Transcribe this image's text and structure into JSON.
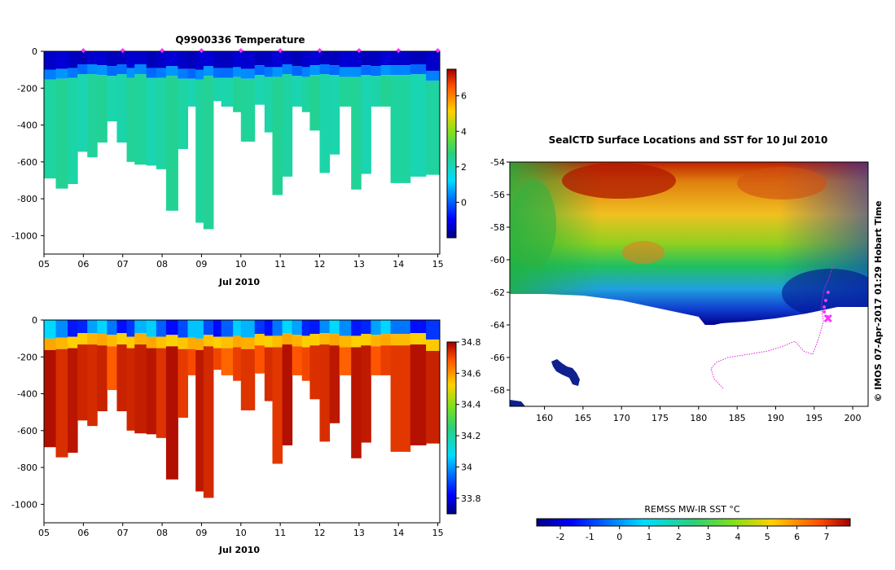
{
  "chart_data": [
    {
      "id": "temperature",
      "type": "heatmap",
      "title": "Q9900336  Temperature",
      "xlabel": "Jul 2010",
      "ylabel": "",
      "xlim": [
        5,
        15.05
      ],
      "ylim": [
        -1100,
        0
      ],
      "x_ticks": [
        "05",
        "06",
        "07",
        "08",
        "09",
        "10",
        "11",
        "12",
        "13",
        "14",
        "15"
      ],
      "y_ticks": [
        0,
        -200,
        -400,
        -600,
        -800,
        -1000
      ],
      "colorbar": {
        "min": -2,
        "max": 7.5,
        "ticks": [
          0,
          2,
          4,
          6
        ]
      },
      "surface_markers_day": [
        6,
        7,
        8,
        9,
        10,
        11,
        12,
        13,
        14,
        15
      ],
      "surface_value": -1.4,
      "thermocline_value": 0.3,
      "deep_value": 2.3,
      "profiles": [
        {
          "day": 5.0,
          "max_depth": 690,
          "mix_depth": 145
        },
        {
          "day": 5.3,
          "max_depth": 745,
          "mix_depth": 140
        },
        {
          "day": 5.6,
          "max_depth": 720,
          "mix_depth": 135
        },
        {
          "day": 5.85,
          "max_depth": 545,
          "mix_depth": 115
        },
        {
          "day": 6.1,
          "max_depth": 575,
          "mix_depth": 115
        },
        {
          "day": 6.35,
          "max_depth": 495,
          "mix_depth": 120
        },
        {
          "day": 6.6,
          "max_depth": 380,
          "mix_depth": 125
        },
        {
          "day": 6.85,
          "max_depth": 495,
          "mix_depth": 115
        },
        {
          "day": 7.1,
          "max_depth": 600,
          "mix_depth": 135
        },
        {
          "day": 7.3,
          "max_depth": 615,
          "mix_depth": 115
        },
        {
          "day": 7.6,
          "max_depth": 620,
          "mix_depth": 135
        },
        {
          "day": 7.85,
          "max_depth": 640,
          "mix_depth": 135
        },
        {
          "day": 8.1,
          "max_depth": 865,
          "mix_depth": 125
        },
        {
          "day": 8.4,
          "max_depth": 530,
          "mix_depth": 140
        },
        {
          "day": 8.65,
          "max_depth": 300,
          "mix_depth": 140
        },
        {
          "day": 8.85,
          "max_depth": 930,
          "mix_depth": 145
        },
        {
          "day": 9.05,
          "max_depth": 965,
          "mix_depth": 125
        },
        {
          "day": 9.3,
          "max_depth": 270,
          "mix_depth": 135
        },
        {
          "day": 9.5,
          "max_depth": 300,
          "mix_depth": 135
        },
        {
          "day": 9.8,
          "max_depth": 330,
          "mix_depth": 130
        },
        {
          "day": 10.0,
          "max_depth": 490,
          "mix_depth": 140
        },
        {
          "day": 10.35,
          "max_depth": 290,
          "mix_depth": 120
        },
        {
          "day": 10.6,
          "max_depth": 440,
          "mix_depth": 130
        },
        {
          "day": 10.8,
          "max_depth": 780,
          "mix_depth": 130
        },
        {
          "day": 11.05,
          "max_depth": 680,
          "mix_depth": 115
        },
        {
          "day": 11.3,
          "max_depth": 300,
          "mix_depth": 125
        },
        {
          "day": 11.55,
          "max_depth": 330,
          "mix_depth": 130
        },
        {
          "day": 11.75,
          "max_depth": 430,
          "mix_depth": 120
        },
        {
          "day": 12.0,
          "max_depth": 660,
          "mix_depth": 115
        },
        {
          "day": 12.25,
          "max_depth": 560,
          "mix_depth": 120
        },
        {
          "day": 12.5,
          "max_depth": 300,
          "mix_depth": 130
        },
        {
          "day": 12.8,
          "max_depth": 750,
          "mix_depth": 130
        },
        {
          "day": 13.05,
          "max_depth": 665,
          "mix_depth": 120
        },
        {
          "day": 13.3,
          "max_depth": 300,
          "mix_depth": 125
        },
        {
          "day": 13.55,
          "max_depth": 300,
          "mix_depth": 120
        },
        {
          "day": 13.8,
          "max_depth": 715,
          "mix_depth": 120
        },
        {
          "day": 14.3,
          "max_depth": 680,
          "mix_depth": 115
        },
        {
          "day": 14.7,
          "max_depth": 670,
          "mix_depth": 150
        },
        {
          "day": 15.05,
          "max_depth": 670,
          "mix_depth": 150
        }
      ]
    },
    {
      "id": "salinity",
      "type": "heatmap",
      "title": "",
      "xlabel": "Jul 2010",
      "ylabel": "",
      "xlim": [
        5,
        15.05
      ],
      "ylim": [
        -1100,
        0
      ],
      "x_ticks": [
        "05",
        "06",
        "07",
        "08",
        "09",
        "10",
        "11",
        "12",
        "13",
        "14",
        "15"
      ],
      "y_ticks": [
        0,
        -200,
        -400,
        -600,
        -800,
        -1000
      ],
      "colorbar": {
        "min": 33.7,
        "max": 34.8,
        "ticks": [
          33.8,
          34.0,
          34.2,
          34.4,
          34.6,
          34.8
        ]
      },
      "surface_value": 33.95,
      "deep_value": 34.74
    },
    {
      "id": "sst-map",
      "type": "heatmap",
      "title": "SealCTD Surface Locations and SST for 10 Jul 2010",
      "xlabel": "",
      "ylabel": "",
      "xlim": [
        155.5,
        202
      ],
      "ylim": [
        -69,
        -54
      ],
      "x_ticks": [
        160,
        165,
        170,
        175,
        180,
        185,
        190,
        195,
        200
      ],
      "y_ticks": [
        -54,
        -56,
        -58,
        -60,
        -62,
        -64,
        -66,
        -68
      ],
      "colorbar_label": "REMSS MW-IR SST °C",
      "colorbar": {
        "min": -2.8,
        "max": 7.8,
        "ticks": [
          -2,
          -1,
          0,
          1,
          2,
          3,
          4,
          5,
          6,
          7
        ]
      },
      "side_note": "© IMOS 07-Apr-2017 01:29 Hobart Time",
      "ice_edge": [
        {
          "lon": 155.5,
          "lat": -62.1
        },
        {
          "lon": 160,
          "lat": -62.1
        },
        {
          "lon": 165,
          "lat": -62.2
        },
        {
          "lon": 170,
          "lat": -62.5
        },
        {
          "lon": 175,
          "lat": -63.0
        },
        {
          "lon": 178,
          "lat": -63.3
        },
        {
          "lon": 180,
          "lat": -63.5
        },
        {
          "lon": 181,
          "lat": -64.1
        },
        {
          "lon": 183,
          "lat": -63.9
        },
        {
          "lon": 186,
          "lat": -63.8
        },
        {
          "lon": 190,
          "lat": -63.6
        },
        {
          "lon": 194,
          "lat": -63.3
        },
        {
          "lon": 198,
          "lat": -62.9
        },
        {
          "lon": 202,
          "lat": -62.9
        }
      ],
      "track": [
        {
          "lon": 183.2,
          "lat": -67.9
        },
        {
          "lon": 182.0,
          "lat": -67.3
        },
        {
          "lon": 181.6,
          "lat": -66.7
        },
        {
          "lon": 182.3,
          "lat": -66.3
        },
        {
          "lon": 183.8,
          "lat": -66.0
        },
        {
          "lon": 186.5,
          "lat": -65.8
        },
        {
          "lon": 189.0,
          "lat": -65.6
        },
        {
          "lon": 191.0,
          "lat": -65.3
        },
        {
          "lon": 192.5,
          "lat": -65.0
        },
        {
          "lon": 193.6,
          "lat": -65.6
        },
        {
          "lon": 194.8,
          "lat": -65.8
        },
        {
          "lon": 195.6,
          "lat": -64.8
        },
        {
          "lon": 196.2,
          "lat": -63.8
        },
        {
          "lon": 195.9,
          "lat": -62.9
        },
        {
          "lon": 196.3,
          "lat": -61.8
        },
        {
          "lon": 197.0,
          "lat": -61.0
        },
        {
          "lon": 197.5,
          "lat": -60.3
        }
      ],
      "profile_points": [
        {
          "lon": 196.8,
          "lat": -62.0
        },
        {
          "lon": 196.5,
          "lat": -62.5
        },
        {
          "lon": 196.3,
          "lat": -62.9
        },
        {
          "lon": 196.3,
          "lat": -63.2
        },
        {
          "lon": 196.7,
          "lat": -63.5
        }
      ],
      "current_position": {
        "lon": 196.8,
        "lat": -63.6
      }
    }
  ],
  "colors": {
    "panel_text": "#000000",
    "ice_white": "#ffffff",
    "track_magenta": "#e020e0",
    "marker_magenta": "#ff33ff"
  }
}
